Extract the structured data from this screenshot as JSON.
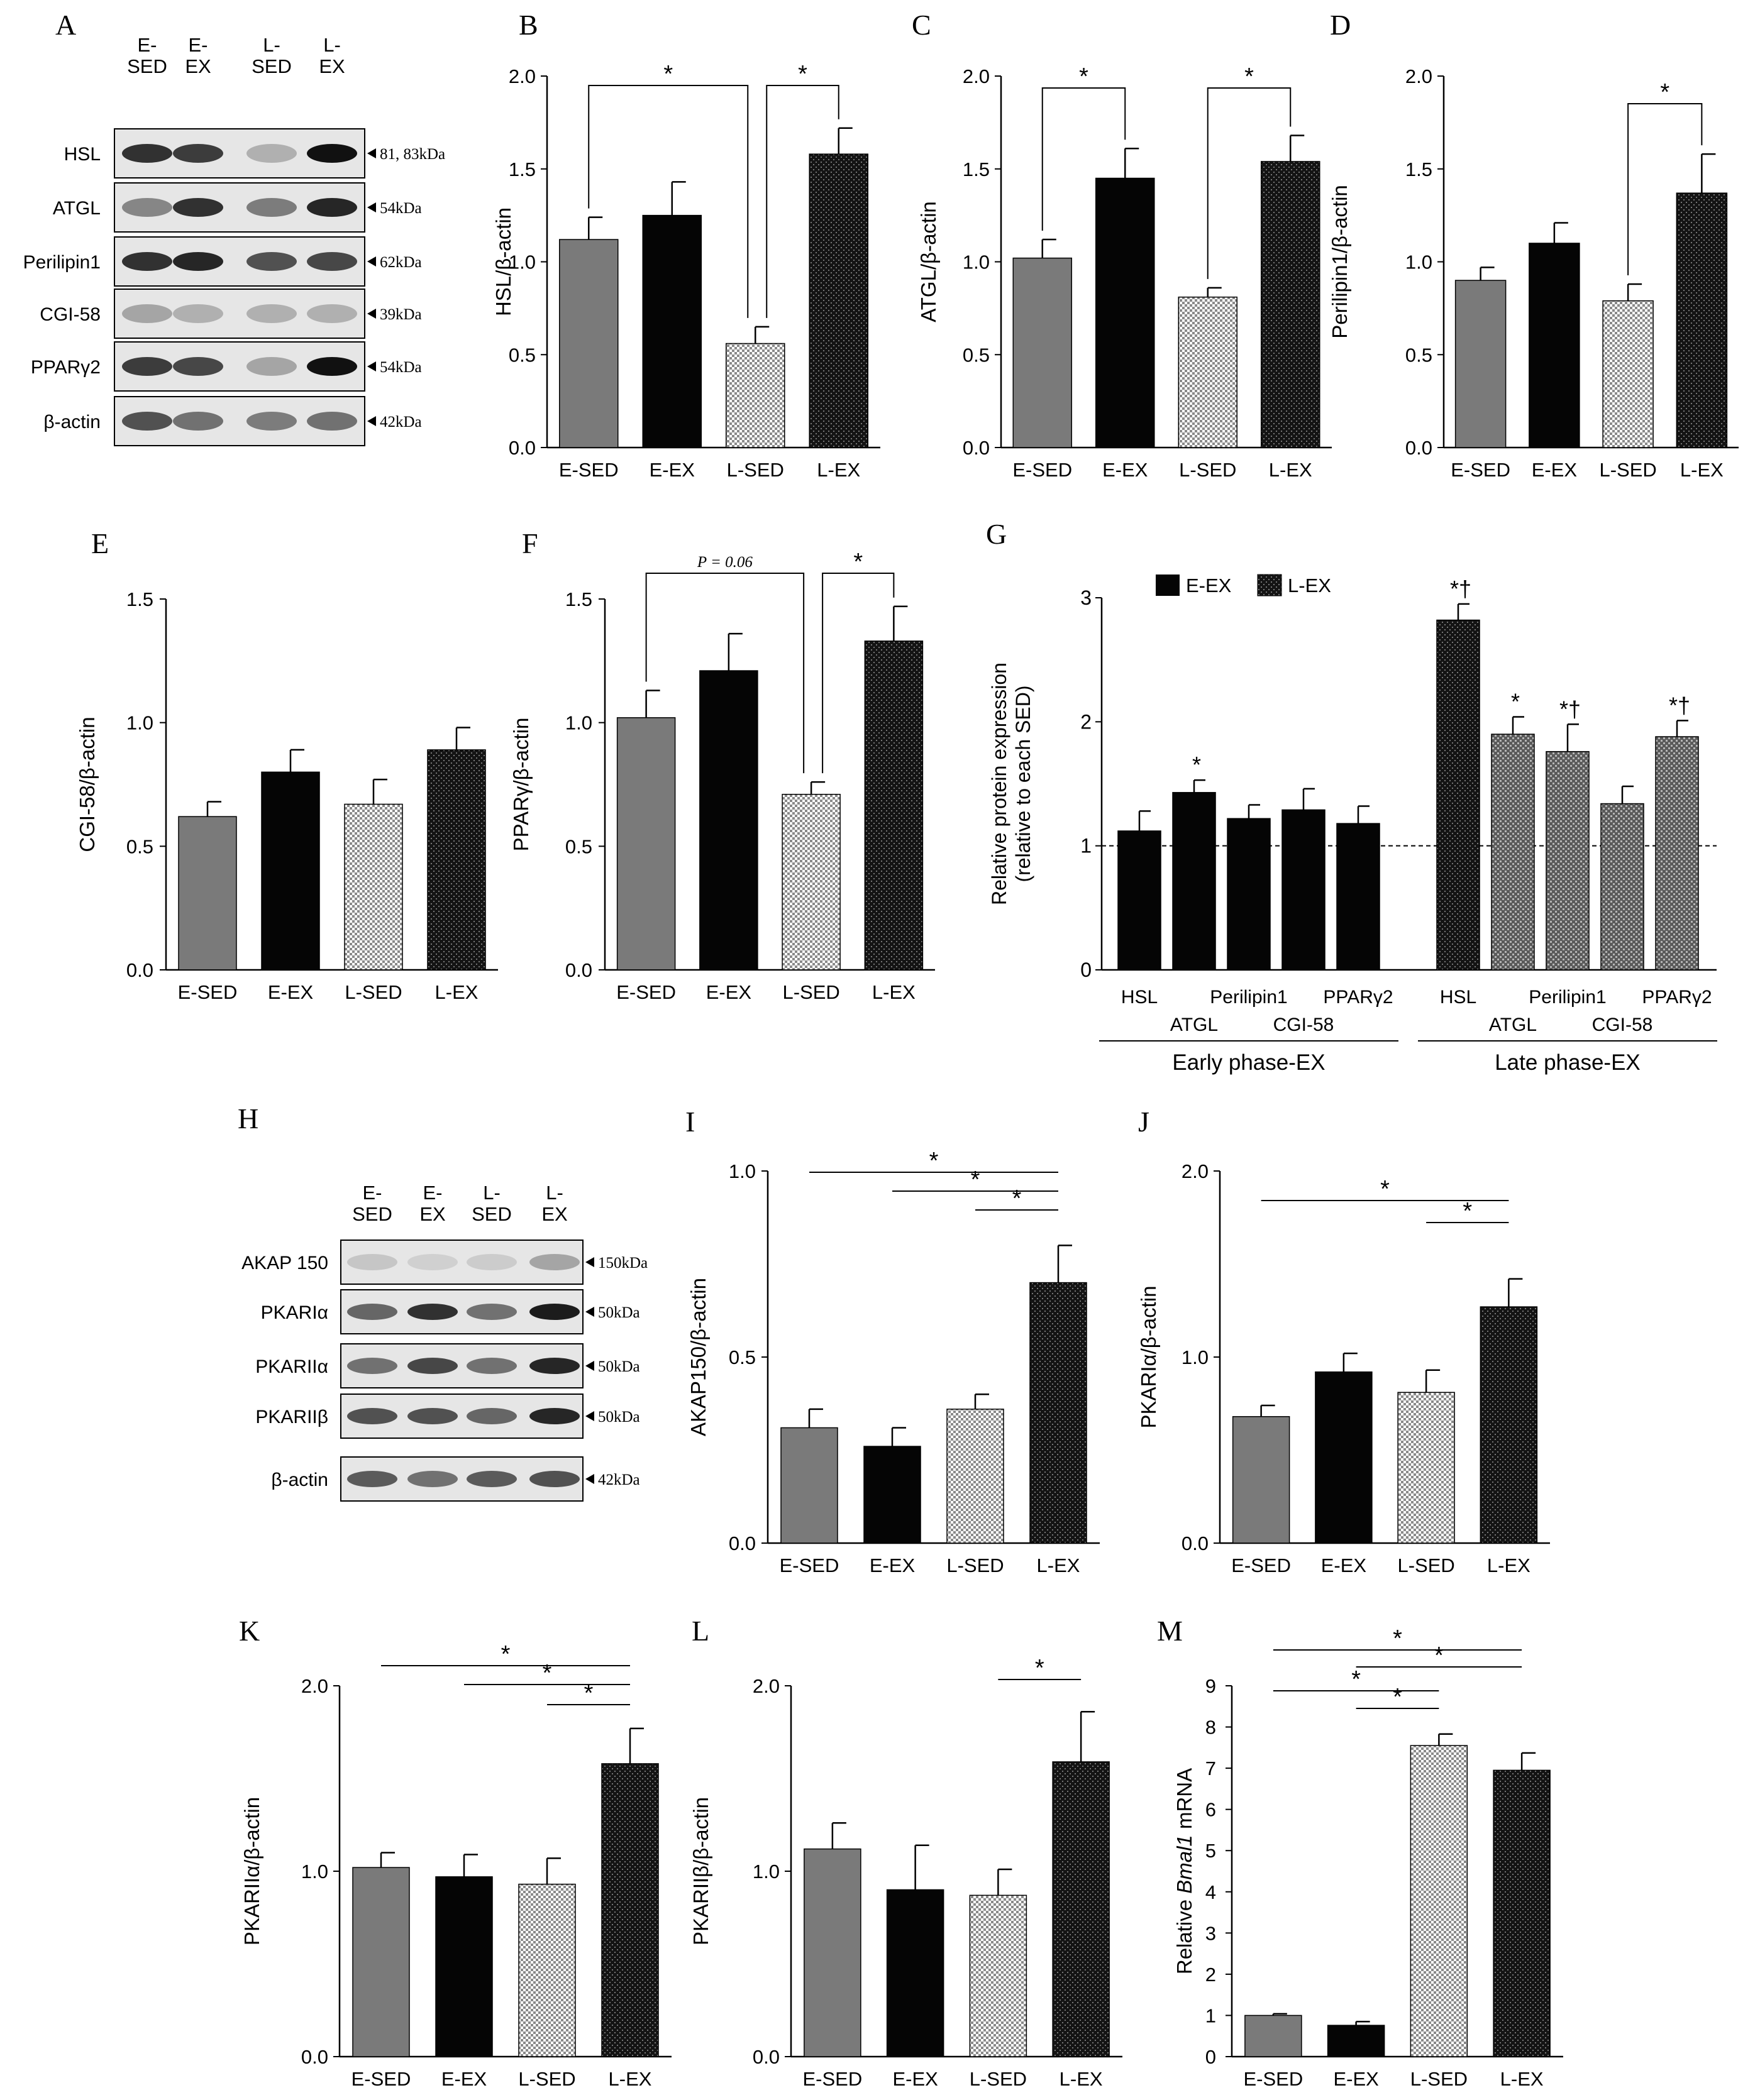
{
  "groups": [
    "E-SED",
    "E-EX",
    "L-SED",
    "L-EX"
  ],
  "blot_lane_labels": [
    [
      "E-",
      "SED"
    ],
    [
      "E-",
      "EX"
    ],
    [
      "L-",
      "SED"
    ],
    [
      "L-",
      "EX"
    ]
  ],
  "colors": {
    "e_sed": "#7a7a7a",
    "e_ex": "#050505",
    "l_sed": "#d8d8d8",
    "l_ex": "#2a2a2a",
    "g_late": "#8c8c8c"
  },
  "panels": [
    {
      "letter": "A",
      "type": "blot",
      "rows": [
        {
          "protein": "HSL",
          "size": "81, 83kDa"
        },
        {
          "protein": "ATGL",
          "size": "54kDa"
        },
        {
          "protein": "Perilipin1",
          "size": "62kDa"
        },
        {
          "protein": "CGI-58",
          "size": "39kDa"
        },
        {
          "protein": "PPARγ2",
          "size": "54kDa"
        },
        {
          "protein": "β-actin",
          "size": "42kDa"
        }
      ]
    },
    {
      "letter": "H",
      "type": "blot",
      "rows": [
        {
          "protein": "AKAP 150",
          "size": "150kDa"
        },
        {
          "protein": "PKARIα",
          "size": "50kDa"
        },
        {
          "protein": "PKARIIα",
          "size": "50kDa"
        },
        {
          "protein": "PKARIIβ",
          "size": "50kDa"
        },
        {
          "protein": "β-actin",
          "size": "42kDa"
        }
      ]
    }
  ],
  "chart_data": [
    {
      "panel": "B",
      "type": "bar",
      "title": "",
      "categories": [
        "E-SED",
        "E-EX",
        "L-SED",
        "L-EX"
      ],
      "values": [
        1.12,
        1.25,
        0.56,
        1.58
      ],
      "errors": [
        0.12,
        0.18,
        0.09,
        0.14
      ],
      "ylabel": "HSL/β-actin",
      "ylim": [
        0,
        2.0
      ],
      "yticks": [
        "0.0",
        "0.5",
        "1.0",
        "1.5",
        "2.0"
      ],
      "significance": [
        {
          "groups": [
            "E-SED",
            "L-SED"
          ],
          "label": "*"
        },
        {
          "groups": [
            "L-SED",
            "L-EX"
          ],
          "label": "*"
        }
      ]
    },
    {
      "panel": "C",
      "type": "bar",
      "title": "",
      "categories": [
        "E-SED",
        "E-EX",
        "L-SED",
        "L-EX"
      ],
      "values": [
        1.02,
        1.45,
        0.81,
        1.54
      ],
      "errors": [
        0.1,
        0.16,
        0.05,
        0.14
      ],
      "ylabel": "ATGL/β-actin",
      "ylim": [
        0,
        2.0
      ],
      "yticks": [
        "0.0",
        "0.5",
        "1.0",
        "1.5",
        "2.0"
      ],
      "significance": [
        {
          "groups": [
            "E-SED",
            "E-EX"
          ],
          "label": "*"
        },
        {
          "groups": [
            "L-SED",
            "L-EX"
          ],
          "label": "*"
        }
      ]
    },
    {
      "panel": "D",
      "type": "bar",
      "title": "",
      "categories": [
        "E-SED",
        "E-EX",
        "L-SED",
        "L-EX"
      ],
      "values": [
        0.9,
        1.1,
        0.79,
        1.37
      ],
      "errors": [
        0.07,
        0.11,
        0.09,
        0.21
      ],
      "ylabel": "Perilipin1/β-actin",
      "ylim": [
        0,
        2.0
      ],
      "yticks": [
        "0.0",
        "0.5",
        "1.0",
        "1.5",
        "2.0"
      ],
      "significance": [
        {
          "groups": [
            "L-SED",
            "L-EX"
          ],
          "label": "*"
        }
      ]
    },
    {
      "panel": "E",
      "type": "bar",
      "title": "",
      "categories": [
        "E-SED",
        "E-EX",
        "L-SED",
        "L-EX"
      ],
      "values": [
        0.62,
        0.8,
        0.67,
        0.89
      ],
      "errors": [
        0.06,
        0.09,
        0.1,
        0.09
      ],
      "ylabel": "CGI-58/β-actin",
      "ylim": [
        0,
        1.5
      ],
      "yticks": [
        "0.0",
        "0.5",
        "1.0",
        "1.5"
      ],
      "significance": []
    },
    {
      "panel": "F",
      "type": "bar",
      "title": "",
      "categories": [
        "E-SED",
        "E-EX",
        "L-SED",
        "L-EX"
      ],
      "values": [
        1.02,
        1.21,
        0.71,
        1.33
      ],
      "errors": [
        0.11,
        0.15,
        0.05,
        0.14
      ],
      "ylabel": "PPARγ/β-actin",
      "ylim": [
        0,
        1.5
      ],
      "yticks": [
        "0.0",
        "0.5",
        "1.0",
        "1.5"
      ],
      "significance": [
        {
          "groups": [
            "E-SED",
            "L-SED"
          ],
          "label": "P = 0.06"
        },
        {
          "groups": [
            "L-SED",
            "L-EX"
          ],
          "label": "*"
        }
      ]
    },
    {
      "panel": "G",
      "type": "bar",
      "title": "",
      "legend": [
        "E-EX",
        "L-EX"
      ],
      "ylabel_lines": [
        "Relative protein expression",
        "(relative to each SED)"
      ],
      "ylim": [
        0,
        3
      ],
      "yticks": [
        "0",
        "1",
        "2",
        "3"
      ],
      "reference_line": 1,
      "groups": [
        {
          "name": "Early phase-EX",
          "series": "E-EX",
          "categories": [
            "HSL",
            "ATGL",
            "Perilipin1",
            "CGI-58",
            "PPARγ2"
          ],
          "values": [
            1.12,
            1.43,
            1.22,
            1.29,
            1.18
          ],
          "errors": [
            0.16,
            0.1,
            0.11,
            0.17,
            0.14
          ],
          "annotations": [
            "",
            "*",
            "",
            "",
            ""
          ]
        },
        {
          "name": "Late phase-EX",
          "series": "L-EX",
          "categories": [
            "HSL",
            "ATGL",
            "Perilipin1",
            "CGI-58",
            "PPARγ2"
          ],
          "values": [
            2.82,
            1.9,
            1.76,
            1.34,
            1.88
          ],
          "errors": [
            0.13,
            0.14,
            0.22,
            0.14,
            0.13
          ],
          "annotations": [
            "*†",
            "*",
            "*†",
            "",
            "*†"
          ]
        }
      ]
    },
    {
      "panel": "I",
      "type": "bar",
      "title": "",
      "categories": [
        "E-SED",
        "E-EX",
        "L-SED",
        "L-EX"
      ],
      "values": [
        0.31,
        0.26,
        0.36,
        0.7
      ],
      "errors": [
        0.05,
        0.05,
        0.04,
        0.1
      ],
      "ylabel": "AKAP150/β-actin",
      "ylim": [
        0,
        1.0
      ],
      "yticks": [
        "0.0",
        "0.5",
        "1.0"
      ],
      "significance": [
        {
          "groups": [
            "E-SED",
            "L-EX"
          ],
          "label": "*"
        },
        {
          "groups": [
            "E-EX",
            "L-EX"
          ],
          "label": "*"
        },
        {
          "groups": [
            "L-SED",
            "L-EX"
          ],
          "label": "*"
        }
      ]
    },
    {
      "panel": "J",
      "type": "bar",
      "title": "",
      "categories": [
        "E-SED",
        "E-EX",
        "L-SED",
        "L-EX"
      ],
      "values": [
        0.68,
        0.92,
        0.81,
        1.27
      ],
      "errors": [
        0.06,
        0.1,
        0.12,
        0.15
      ],
      "ylabel": "PKARIα/β-actin",
      "ylim": [
        0,
        2.0
      ],
      "yticks": [
        "0.0",
        "1.0",
        "2.0"
      ],
      "significance": [
        {
          "groups": [
            "E-SED",
            "L-EX"
          ],
          "label": "*"
        },
        {
          "groups": [
            "L-SED",
            "L-EX"
          ],
          "label": "*"
        }
      ]
    },
    {
      "panel": "K",
      "type": "bar",
      "title": "",
      "categories": [
        "E-SED",
        "E-EX",
        "L-SED",
        "L-EX"
      ],
      "values": [
        1.02,
        0.97,
        0.93,
        1.58
      ],
      "errors": [
        0.08,
        0.12,
        0.14,
        0.19
      ],
      "ylabel": "PKARIIα/β-actin",
      "ylim": [
        0,
        2.0
      ],
      "yticks": [
        "0.0",
        "1.0",
        "2.0"
      ],
      "significance": [
        {
          "groups": [
            "E-SED",
            "L-EX"
          ],
          "label": "*"
        },
        {
          "groups": [
            "E-EX",
            "L-EX"
          ],
          "label": "*"
        },
        {
          "groups": [
            "L-SED",
            "L-EX"
          ],
          "label": "*"
        }
      ]
    },
    {
      "panel": "L",
      "type": "bar",
      "title": "",
      "categories": [
        "E-SED",
        "E-EX",
        "L-SED",
        "L-EX"
      ],
      "values": [
        1.12,
        0.9,
        0.87,
        1.59
      ],
      "errors": [
        0.14,
        0.24,
        0.14,
        0.27
      ],
      "ylabel": "PKARIIβ/β-actin",
      "ylim": [
        0,
        2.0
      ],
      "yticks": [
        "0.0",
        "1.0",
        "2.0"
      ],
      "significance": [
        {
          "groups": [
            "L-SED",
            "L-EX"
          ],
          "label": "*"
        }
      ]
    },
    {
      "panel": "M",
      "type": "bar",
      "title": "",
      "categories": [
        "E-SED",
        "E-EX",
        "L-SED",
        "L-EX"
      ],
      "values": [
        1.0,
        0.76,
        7.55,
        6.95
      ],
      "errors": [
        0.04,
        0.09,
        0.28,
        0.42
      ],
      "ylabel_parts": [
        "Relative ",
        "Bmal1",
        " mRNA"
      ],
      "ylim": [
        0,
        9
      ],
      "yticks": [
        "0",
        "1",
        "2",
        "3",
        "4",
        "5",
        "6",
        "7",
        "8",
        "9"
      ],
      "significance": [
        {
          "groups": [
            "E-SED",
            "L-EX"
          ],
          "label": "*"
        },
        {
          "groups": [
            "E-EX",
            "L-EX"
          ],
          "label": "*"
        },
        {
          "groups": [
            "E-SED",
            "L-SED"
          ],
          "label": "*"
        },
        {
          "groups": [
            "E-EX",
            "L-SED"
          ],
          "label": "*"
        }
      ]
    }
  ]
}
